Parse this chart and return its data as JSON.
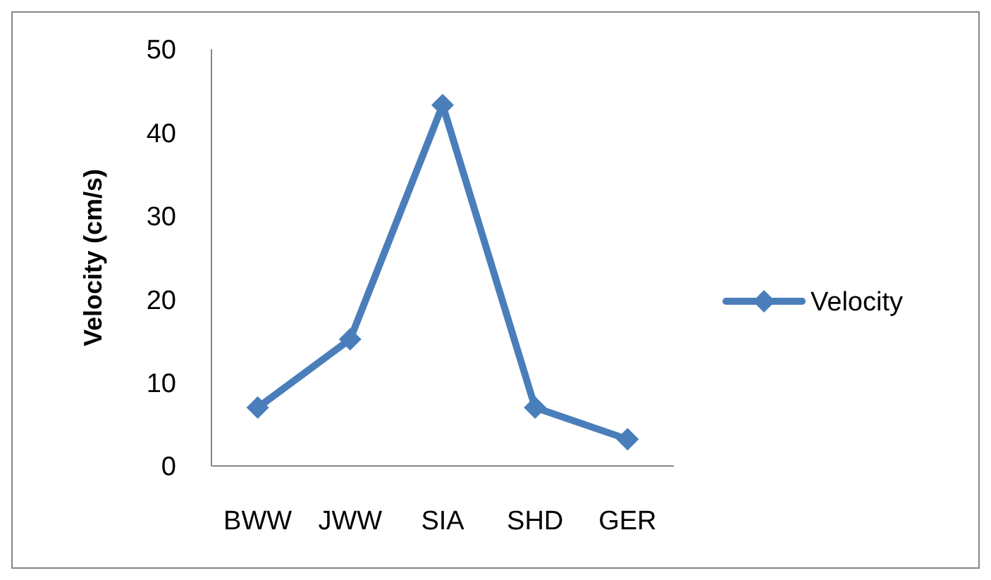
{
  "chart_data": {
    "type": "line",
    "ylabel": "Velocity (cm/s)",
    "categories": [
      "BWW",
      "JWW",
      "SIA",
      "SHD",
      "GER"
    ],
    "series": [
      {
        "name": "Velocity",
        "color": "#4a7ebb",
        "values": [
          7.0,
          15.2,
          43.3,
          7.0,
          3.2
        ]
      }
    ],
    "ylim": [
      0,
      50
    ],
    "yticks": [
      0,
      10,
      20,
      30,
      40,
      50
    ],
    "grid": false,
    "legend": "right",
    "marker": "diamond",
    "line_style": "solid"
  }
}
